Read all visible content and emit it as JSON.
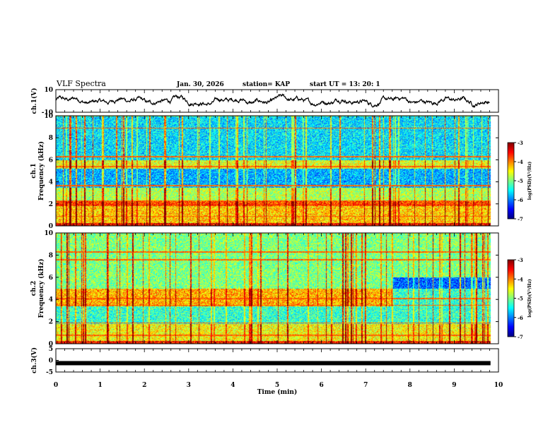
{
  "header": {
    "title": "VLF Spectra",
    "date": "Jan. 30, 2026",
    "station": "station= KAP",
    "start": "start  UT  =   13: 20: 1"
  },
  "colors": {
    "background": "#ffffff",
    "trace": "#000000",
    "colormap": [
      "#00007f",
      "#0000ff",
      "#007fff",
      "#00ffff",
      "#7fff7f",
      "#ffff00",
      "#ff7f00",
      "#ff0000",
      "#7f0000"
    ]
  },
  "chart_data": [
    {
      "type": "line",
      "name": "ch1-waveform",
      "ylabel": "ch.1(V)",
      "ylim": [
        -10,
        10
      ],
      "ytick_labels": [
        "10",
        "-10"
      ],
      "x_range_min": [
        0,
        9.8
      ],
      "approx_mean": 0,
      "approx_amplitude": 5
    },
    {
      "type": "heatmap",
      "name": "ch1-spectrogram",
      "ylabel": "ch.1\nFrequency (kHz)",
      "ylabel_line1": "ch.1",
      "ylabel_line2": "Frequency (kHz)",
      "ylim": [
        0,
        10
      ],
      "yticks": [
        "0",
        "2",
        "4",
        "6",
        "8",
        "10"
      ],
      "colorbar": {
        "label": "log(PSD)(V²/Hz)",
        "range": [
          -7,
          -3
        ],
        "ticks": [
          "-3",
          "-4",
          "-5",
          "-6",
          "-7"
        ]
      },
      "bands_kHz": [
        {
          "from": 0,
          "to": 0.3,
          "log_psd": -3.5
        },
        {
          "from": 0.3,
          "to": 1.8,
          "log_psd": -4.3
        },
        {
          "from": 1.8,
          "to": 2.3,
          "log_psd": -3.8
        },
        {
          "from": 2.3,
          "to": 3.5,
          "log_psd": -4.8
        },
        {
          "from": 3.5,
          "to": 5.2,
          "log_psd": -5.8
        },
        {
          "from": 5.2,
          "to": 6.0,
          "log_psd": -4.6
        },
        {
          "from": 6.0,
          "to": 10,
          "log_psd": -5.6
        }
      ]
    },
    {
      "type": "heatmap",
      "name": "ch2-spectrogram",
      "ylabel": "ch.2\nFrequency (kHz)",
      "ylabel_line1": "ch.2",
      "ylabel_line2": "Frequency (kHz)",
      "ylim": [
        0,
        10
      ],
      "yticks": [
        "0",
        "2",
        "4",
        "6",
        "8",
        "10"
      ],
      "colorbar": {
        "label": "log(PSD)(V²/Hz)",
        "range": [
          -7,
          -3
        ],
        "ticks": [
          "-3",
          "-4",
          "-5",
          "-6",
          "-7"
        ]
      },
      "bands_kHz": [
        {
          "from": 0,
          "to": 0.3,
          "log_psd": -3.6
        },
        {
          "from": 0.3,
          "to": 1.8,
          "log_psd": -4.5
        },
        {
          "from": 1.8,
          "to": 3.4,
          "log_psd": -5.3
        },
        {
          "from": 3.4,
          "to": 5.0,
          "log_psd": -4.2
        },
        {
          "from": 5.0,
          "to": 10,
          "log_psd": -5.0
        }
      ],
      "change_at_min": 7.6
    },
    {
      "type": "line",
      "name": "ch3-waveform",
      "ylabel": "ch.3(V)",
      "ylim": [
        -5,
        5
      ],
      "ytick_labels": [
        "5",
        "0",
        "-5"
      ],
      "constant_value": -1.2
    }
  ],
  "xaxis": {
    "label": "Time (min)",
    "range": [
      0,
      10
    ],
    "ticks": [
      "0",
      "1",
      "2",
      "3",
      "4",
      "5",
      "6",
      "7",
      "8",
      "9",
      "10"
    ]
  }
}
